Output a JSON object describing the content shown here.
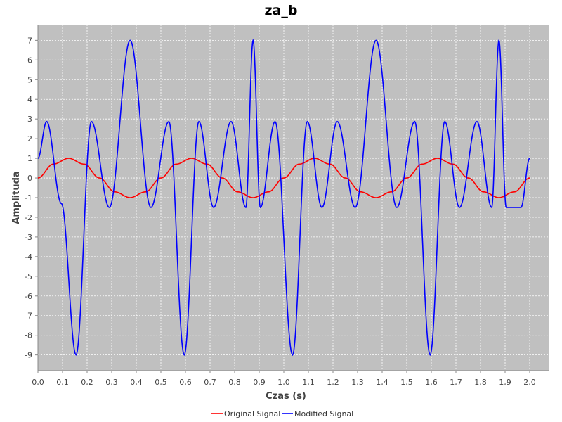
{
  "chart_data": {
    "type": "line",
    "title": "za_b",
    "xlabel": "Czas (s)",
    "ylabel": "Amplituda",
    "xlim": [
      0,
      2.0
    ],
    "ylim": [
      -9.8,
      7.8
    ],
    "xticks": [
      0.0,
      0.1,
      0.2,
      0.3,
      0.4,
      0.5,
      0.6,
      0.7,
      0.8,
      0.9,
      1.0,
      1.1,
      1.2,
      1.3,
      1.4,
      1.5,
      1.6,
      1.7,
      1.8,
      1.9,
      2.0
    ],
    "xtick_labels": [
      "0,0",
      "0,1",
      "0,2",
      "0,3",
      "0,4",
      "0,5",
      "0,6",
      "0,7",
      "0,8",
      "0,9",
      "1,0",
      "1,1",
      "1,2",
      "1,3",
      "1,4",
      "1,5",
      "1,6",
      "1,7",
      "1,8",
      "1,9",
      "2,0"
    ],
    "yticks": [
      7,
      6,
      5,
      4,
      3,
      2,
      1,
      0,
      -1,
      -2,
      -3,
      -4,
      -5,
      -6,
      -7,
      -8,
      -9
    ],
    "ytick_labels": [
      "7",
      "6",
      "5",
      "4",
      "3",
      "2",
      "1",
      "0",
      "-1",
      "-2",
      "-3",
      "-4",
      "-5",
      "-6",
      "-7",
      "-8",
      "-9"
    ],
    "grid": true,
    "legend_position": "bottom",
    "background_color": "#c0c0c0",
    "series": [
      {
        "name": "Original Signal",
        "color": "#ff0000",
        "x": [
          0,
          0.0625,
          0.125,
          0.1875,
          0.25,
          0.3125,
          0.375,
          0.4375,
          0.5,
          0.5625,
          0.625,
          0.6875,
          0.75,
          0.8125,
          0.875,
          0.9375,
          1.0,
          1.0625,
          1.125,
          1.1875,
          1.25,
          1.3125,
          1.375,
          1.4375,
          1.5,
          1.5625,
          1.625,
          1.6875,
          1.75,
          1.8125,
          1.875,
          1.9375,
          2.0
        ],
        "y": [
          0,
          0.707,
          1,
          0.707,
          0,
          -0.707,
          -1,
          -0.707,
          0,
          0.707,
          1,
          0.707,
          0,
          -0.707,
          -1,
          -0.707,
          0,
          0.707,
          1,
          0.707,
          0,
          -0.707,
          -1,
          -0.707,
          0,
          0.707,
          1,
          0.707,
          0,
          -0.707,
          -1,
          -0.707,
          0
        ]
      },
      {
        "name": "Modified Signal",
        "color": "#0000ff",
        "x": [
          0,
          0.0355,
          0.0955,
          0.155,
          0.2175,
          0.2905,
          0.375,
          0.4595,
          0.5325,
          0.595,
          0.6545,
          0.7145,
          0.7855,
          0.8455,
          0.875,
          0.9045,
          0.9645,
          1.0355,
          1.0955,
          1.155,
          1.2175,
          1.2905,
          1.375,
          1.4595,
          1.5325,
          1.595,
          1.6545,
          1.7145,
          1.7855,
          1.8455,
          1.875,
          1.9045,
          1.9645,
          2.0
        ],
        "y": [
          1,
          2.87,
          -1.3,
          -9,
          2.87,
          -1.5,
          7,
          -1.5,
          2.87,
          -9,
          2.87,
          -1.5,
          2.87,
          -1.5,
          7,
          -1.5,
          2.87,
          -9,
          2.87,
          -1.5,
          2.87,
          -1.5,
          7,
          -1.5,
          2.87,
          -9,
          2.87,
          -1.5,
          2.87,
          -1.5,
          7,
          -1.5,
          -1.5,
          1
        ]
      }
    ]
  }
}
